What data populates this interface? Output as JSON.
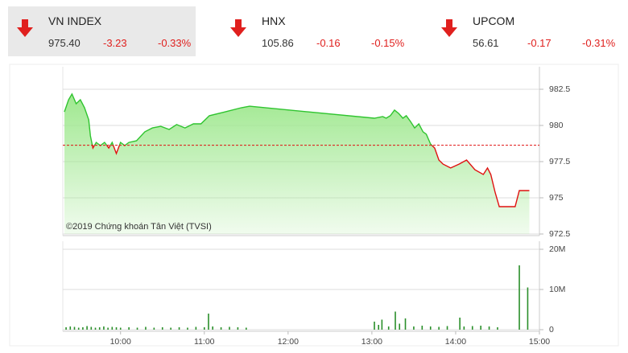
{
  "tickers": [
    {
      "name": "VN INDEX",
      "price": "975.40",
      "change": "-3.23",
      "percent": "-0.33%"
    },
    {
      "name": "HNX",
      "price": "105.86",
      "change": "-0.16",
      "percent": "-0.15%"
    },
    {
      "name": "UPCOM",
      "price": "56.61",
      "change": "-0.17",
      "percent": "-0.31%"
    }
  ],
  "chart_data": [
    {
      "type": "area",
      "annotation": "©2019 Chứng khoán Tân Việt (TVSI)",
      "x": [
        9.33,
        9.38,
        9.42,
        9.47,
        9.52,
        9.57,
        9.62,
        9.64,
        9.67,
        9.71,
        9.76,
        9.81,
        9.86,
        9.9,
        9.95,
        10.0,
        10.05,
        10.1,
        10.19,
        10.29,
        10.38,
        10.48,
        10.58,
        10.67,
        10.77,
        10.87,
        10.96,
        11.06,
        11.25,
        11.44,
        11.54,
        13.03,
        13.13,
        13.17,
        13.22,
        13.27,
        13.32,
        13.37,
        13.41,
        13.46,
        13.51,
        13.56,
        13.61,
        13.65,
        13.7,
        13.75,
        13.8,
        13.85,
        13.94,
        14.04,
        14.13,
        14.23,
        14.33,
        14.38,
        14.42,
        14.47,
        14.52,
        14.71,
        14.76,
        14.88
      ],
      "values": [
        980.94,
        981.78,
        982.17,
        981.5,
        981.78,
        981.22,
        980.39,
        979.28,
        978.44,
        978.83,
        978.61,
        978.83,
        978.44,
        978.83,
        978.06,
        978.83,
        978.61,
        978.83,
        978.94,
        979.56,
        979.83,
        979.94,
        979.72,
        980.06,
        979.83,
        980.11,
        980.11,
        980.67,
        980.94,
        981.22,
        981.33,
        980.5,
        980.61,
        980.5,
        980.67,
        981.06,
        980.83,
        980.5,
        980.67,
        980.28,
        979.83,
        980.11,
        979.56,
        979.39,
        978.72,
        978.44,
        977.61,
        977.33,
        977.06,
        977.33,
        977.61,
        976.94,
        976.61,
        977.06,
        976.61,
        975.39,
        974.39,
        974.39,
        975.5,
        975.5
      ],
      "reference": 978.63,
      "color": "#2fc42f",
      "color_below": "#e01010",
      "fill": "#9fe88f",
      "xlim": [
        9.33,
        15
      ],
      "ylim": [
        972.5,
        983.5
      ],
      "yticks": [
        972.5,
        975,
        977.5,
        980,
        982.5
      ],
      "grid": true
    },
    {
      "type": "bar",
      "x": [
        9.35,
        9.4,
        9.45,
        9.5,
        9.55,
        9.6,
        9.65,
        9.7,
        9.75,
        9.8,
        9.85,
        9.9,
        9.95,
        10.0,
        10.1,
        10.2,
        10.3,
        10.4,
        10.5,
        10.6,
        10.7,
        10.8,
        10.9,
        11.0,
        11.05,
        11.1,
        11.2,
        11.3,
        11.4,
        11.5,
        13.03,
        13.08,
        13.12,
        13.2,
        13.28,
        13.33,
        13.4,
        13.5,
        13.6,
        13.7,
        13.8,
        13.9,
        14.05,
        14.1,
        14.2,
        14.3,
        14.4,
        14.5,
        14.76,
        14.86
      ],
      "values": [
        600000,
        800000,
        700000,
        500000,
        600000,
        900000,
        700000,
        500000,
        600000,
        800000,
        500000,
        700000,
        600000,
        500000,
        600000,
        500000,
        700000,
        500000,
        600000,
        500000,
        600000,
        500000,
        700000,
        600000,
        4000000,
        800000,
        600000,
        700000,
        600000,
        500000,
        2000000,
        1200000,
        2500000,
        800000,
        4500000,
        1500000,
        2800000,
        800000,
        1000000,
        800000,
        700000,
        900000,
        3000000,
        800000,
        900000,
        1000000,
        800000,
        600000,
        16000000,
        10500000
      ],
      "color": "#2a8f2a",
      "xlim": [
        9.33,
        15
      ],
      "ylim": [
        0,
        20000000
      ],
      "xticks": [
        {
          "value": 10,
          "label": "10:00"
        },
        {
          "value": 11,
          "label": "11:00"
        },
        {
          "value": 12,
          "label": "12:00"
        },
        {
          "value": 13,
          "label": "13:00"
        },
        {
          "value": 14,
          "label": "14:00"
        },
        {
          "value": 15,
          "label": "15:00"
        }
      ],
      "yticks": [
        0,
        {
          "value": 10000000,
          "label": "10M"
        },
        {
          "value": 20000000,
          "label": "20M"
        }
      ],
      "grid": true
    }
  ]
}
